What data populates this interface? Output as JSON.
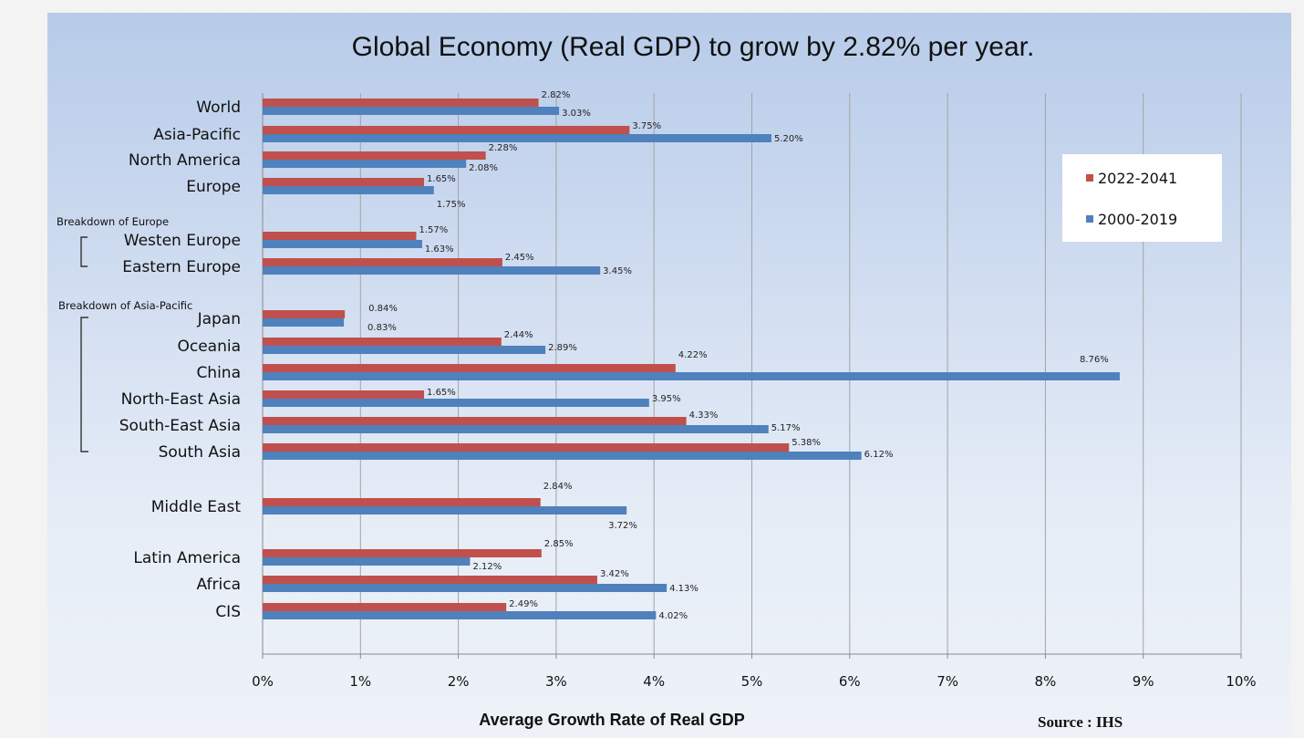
{
  "chart_data": {
    "type": "bar",
    "orientation": "horizontal",
    "title": "Global Economy (Real GDP) to grow by 2.82% per year.",
    "xlabel": "Average Growth Rate of Real GDP",
    "source": "Source : IHS",
    "xlim": [
      0,
      10
    ],
    "x_ticks": [
      "0%",
      "1%",
      "2%",
      "3%",
      "4%",
      "5%",
      "6%",
      "7%",
      "8%",
      "9%",
      "10%"
    ],
    "grid": "vertical",
    "legend_position": "top-right",
    "categories": [
      "World",
      "Asia-Pacific",
      "North America",
      "Europe",
      "Westen Europe",
      "Eastern Europe",
      "Japan",
      "Oceania",
      "China",
      "North-East Asia",
      "South-East Asia",
      "South Asia",
      "Middle East",
      "Latin America",
      "Africa",
      "CIS"
    ],
    "series": [
      {
        "name": "2022-2041",
        "color": "#c0504d",
        "values": [
          2.82,
          3.75,
          2.28,
          1.65,
          1.57,
          2.45,
          0.84,
          2.44,
          4.22,
          1.65,
          4.33,
          5.38,
          2.84,
          2.85,
          3.42,
          2.49
        ],
        "labels": [
          "2.82%",
          "3.75%",
          "2.28%",
          "1.65%",
          "1.57%",
          "2.45%",
          "0.84%",
          "2.44%",
          "4.22%",
          "1.65%",
          "4.33%",
          "5.38%",
          "2.84%",
          "2.85%",
          "3.42%",
          "2.49%"
        ]
      },
      {
        "name": "2000-2019",
        "color": "#4f81bd",
        "values": [
          3.03,
          5.2,
          2.08,
          1.75,
          1.63,
          3.45,
          0.83,
          2.89,
          8.76,
          3.95,
          5.17,
          6.12,
          3.72,
          2.12,
          4.13,
          4.02
        ],
        "labels": [
          "3.03%",
          "5.20%",
          "2.08%",
          "1.75%",
          "1.63%",
          "3.45%",
          "0.83%",
          "2.89%",
          "8.76%",
          "3.95%",
          "5.17%",
          "6.12%",
          "3.72%",
          "2.12%",
          "4.13%",
          "4.02%"
        ]
      }
    ],
    "groups": [
      {
        "label": "Breakdown of Europe",
        "members": [
          "Westen Europe",
          "Eastern Europe"
        ]
      },
      {
        "label": "Breakdown of Asia-Pacific",
        "members": [
          "Japan",
          "Oceania",
          "China",
          "North-East Asia",
          "South-East Asia",
          "South Asia"
        ]
      }
    ]
  }
}
